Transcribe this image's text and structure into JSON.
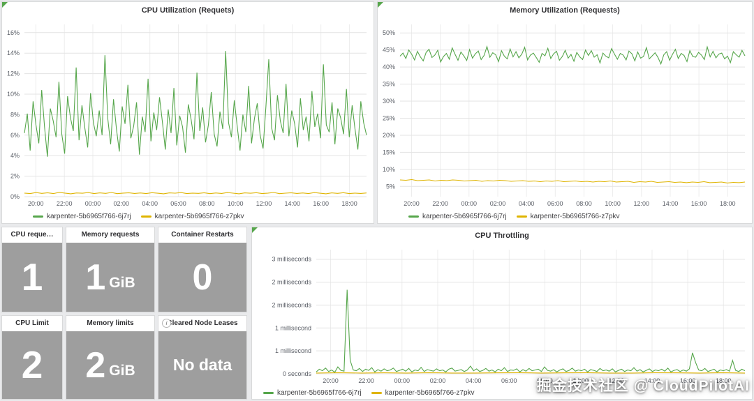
{
  "colors": {
    "green": "#56a64b",
    "yellow": "#dfb400",
    "stat_bg": "#9e9e9e",
    "panel_border": "#d8d9da"
  },
  "icons": {
    "info": "i"
  },
  "watermark": "掘金技术社区 @ CloudPilotAI",
  "panels": {
    "stats": [
      {
        "title": "CPU reque…",
        "value": "1",
        "unit": ""
      },
      {
        "title": "Memory requests",
        "value": "1",
        "unit": "GiB"
      },
      {
        "title": "Container Restarts",
        "value": "0",
        "unit": ""
      },
      {
        "title": "CPU Limit",
        "value": "2",
        "unit": ""
      },
      {
        "title": "Memory limits",
        "value": "2",
        "unit": "GiB"
      },
      {
        "title": "Cleared Node Leases",
        "value": "No data",
        "unit": ""
      }
    ]
  },
  "chart_data": [
    {
      "type": "line",
      "title": "CPU Utilization (Requets)",
      "xlabel": "",
      "ylabel": "",
      "grid": true,
      "legend_position": "bottom",
      "ylim": [
        0,
        16.8
      ],
      "y_ticks": [
        {
          "v": 0,
          "label": "0%"
        },
        {
          "v": 2,
          "label": "2%"
        },
        {
          "v": 4,
          "label": "4%"
        },
        {
          "v": 6,
          "label": "6%"
        },
        {
          "v": 8,
          "label": "8%"
        },
        {
          "v": 10,
          "label": "10%"
        },
        {
          "v": 12,
          "label": "12%"
        },
        {
          "v": 14,
          "label": "14%"
        },
        {
          "v": 16,
          "label": "16%"
        }
      ],
      "x_ticks": [
        "20:00",
        "22:00",
        "00:00",
        "02:00",
        "04:00",
        "06:00",
        "08:00",
        "10:00",
        "12:00",
        "14:00",
        "16:00",
        "18:00"
      ],
      "series": [
        {
          "name": "karpenter-5b6965f766-6j7rj",
          "color": "#56a64b",
          "values": [
            6.2,
            8.1,
            4.5,
            9.3,
            7.0,
            5.2,
            10.4,
            6.8,
            3.9,
            8.6,
            7.4,
            5.8,
            11.2,
            6.1,
            4.2,
            9.8,
            7.7,
            6.4,
            12.6,
            5.5,
            8.9,
            6.7,
            4.8,
            10.1,
            7.2,
            5.9,
            8.4,
            6.0,
            13.8,
            7.6,
            5.1,
            9.5,
            6.6,
            4.4,
            8.8,
            7.1,
            10.9,
            5.7,
            6.9,
            9.2,
            4.1,
            7.8,
            6.3,
            11.5,
            5.4,
            8.2,
            6.5,
            9.7,
            7.3,
            4.6,
            8.5,
            6.2,
            10.6,
            5.0,
            7.9,
            6.8,
            4.3,
            9.0,
            7.5,
            5.6,
            12.1,
            6.4,
            8.7,
            5.3,
            7.0,
            10.2,
            6.1,
            4.9,
            8.3,
            6.6,
            14.2,
            7.2,
            5.8,
            9.4,
            6.9,
            4.5,
            8.0,
            6.3,
            10.8,
            5.2,
            7.6,
            9.1,
            6.0,
            4.7,
            8.8,
            13.4,
            6.7,
            5.5,
            9.9,
            7.4,
            6.2,
            11.0,
            5.9,
            8.4,
            7.1,
            4.8,
            9.6,
            6.5,
            7.8,
            5.4,
            10.3,
            6.8,
            8.1,
            5.7,
            12.9,
            7.0,
            6.3,
            9.2,
            5.1,
            8.6,
            7.7,
            6.1,
            10.5,
            5.8,
            8.9,
            6.6,
            4.6,
            9.3,
            7.2,
            6.0
          ]
        },
        {
          "name": "karpenter-5b6965f766-z7pkv",
          "color": "#dfb400",
          "values": [
            0.35,
            0.3,
            0.4,
            0.32,
            0.38,
            0.3,
            0.42,
            0.35,
            0.28,
            0.36,
            0.33,
            0.4,
            0.3,
            0.37,
            0.32,
            0.41,
            0.29,
            0.35,
            0.38,
            0.31,
            0.36,
            0.3,
            0.39,
            0.33,
            0.28,
            0.37,
            0.34,
            0.4,
            0.3,
            0.35,
            0.32,
            0.38,
            0.29,
            0.36,
            0.31,
            0.4,
            0.34,
            0.28,
            0.37,
            0.33,
            0.39,
            0.3,
            0.35,
            0.41,
            0.29,
            0.34,
            0.38,
            0.31,
            0.36,
            0.3,
            0.4,
            0.33,
            0.28,
            0.37,
            0.32,
            0.39,
            0.3,
            0.35,
            0.31,
            0.36
          ]
        }
      ]
    },
    {
      "type": "line",
      "title": "Memory Utilization (Requests)",
      "xlabel": "",
      "ylabel": "",
      "grid": true,
      "legend_position": "bottom",
      "ylim": [
        2,
        52.5
      ],
      "y_ticks": [
        {
          "v": 5,
          "label": "5%"
        },
        {
          "v": 10,
          "label": "10%"
        },
        {
          "v": 15,
          "label": "15%"
        },
        {
          "v": 20,
          "label": "20%"
        },
        {
          "v": 25,
          "label": "25%"
        },
        {
          "v": 30,
          "label": "30%"
        },
        {
          "v": 35,
          "label": "35%"
        },
        {
          "v": 40,
          "label": "40%"
        },
        {
          "v": 45,
          "label": "45%"
        },
        {
          "v": 50,
          "label": "50%"
        }
      ],
      "x_ticks": [
        "20:00",
        "22:00",
        "00:00",
        "02:00",
        "04:00",
        "06:00",
        "08:00",
        "10:00",
        "12:00",
        "14:00",
        "16:00",
        "18:00"
      ],
      "series": [
        {
          "name": "karpenter-5b6965f766-6j7rj",
          "color": "#56a64b",
          "values": [
            43.2,
            44.1,
            42.5,
            45.0,
            43.8,
            42.1,
            44.6,
            43.0,
            41.8,
            44.3,
            45.2,
            42.8,
            43.5,
            44.9,
            41.5,
            43.1,
            44.0,
            42.3,
            45.6,
            43.7,
            42.0,
            44.4,
            43.3,
            41.9,
            45.1,
            42.6,
            43.9,
            44.7,
            42.2,
            43.4,
            46.0,
            42.9,
            44.2,
            43.6,
            41.6,
            44.8,
            43.2,
            42.4,
            45.3,
            43.0,
            44.5,
            42.7,
            43.8,
            45.8,
            42.1,
            43.5,
            44.1,
            42.8,
            41.4,
            44.0,
            43.3,
            45.5,
            42.5,
            43.9,
            44.6,
            42.0,
            43.1,
            44.9,
            42.6,
            43.7,
            41.7,
            44.3,
            43.0,
            42.2,
            45.0,
            43.4,
            44.8,
            42.9,
            43.6,
            41.2,
            44.1,
            43.2,
            42.7,
            45.4,
            43.8,
            42.3,
            44.0,
            43.5,
            42.1,
            44.7,
            43.9,
            41.8,
            44.4,
            42.6,
            43.1,
            45.7,
            42.4,
            43.3,
            44.2,
            42.8,
            40.9,
            43.6,
            44.5,
            42.0,
            43.7,
            45.2,
            42.5,
            44.0,
            43.4,
            41.6,
            44.8,
            43.1,
            42.9,
            44.3,
            43.5,
            42.2,
            45.9,
            43.0,
            44.6,
            42.7,
            43.8,
            44.1,
            42.4,
            43.2,
            41.3,
            44.5,
            43.6,
            42.9,
            44.9,
            43.3
          ]
        },
        {
          "name": "karpenter-5b6965f766-z7pkv",
          "color": "#dfb400",
          "values": [
            6.9,
            6.8,
            7.0,
            6.7,
            6.8,
            6.9,
            6.6,
            6.8,
            6.7,
            6.9,
            6.8,
            6.6,
            6.7,
            6.8,
            6.5,
            6.7,
            6.6,
            6.8,
            6.7,
            6.5,
            6.6,
            6.7,
            6.5,
            6.6,
            6.4,
            6.6,
            6.5,
            6.7,
            6.4,
            6.5,
            6.6,
            6.4,
            6.5,
            6.3,
            6.5,
            6.4,
            6.6,
            6.3,
            6.4,
            6.5,
            6.2,
            6.4,
            6.3,
            6.5,
            6.2,
            6.3,
            6.4,
            6.2,
            6.3,
            6.1,
            6.3,
            6.2,
            6.4,
            6.1,
            6.2,
            6.3,
            6.0,
            6.2,
            6.1,
            6.3
          ]
        }
      ]
    },
    {
      "type": "line",
      "title": "CPU Throttling",
      "xlabel": "",
      "ylabel": "",
      "grid": true,
      "legend_position": "bottom",
      "ylim": [
        0,
        3.25
      ],
      "y_ticks": [
        {
          "v": 0,
          "label": "0 seconds"
        },
        {
          "v": 0.6,
          "label": "1 millisecond"
        },
        {
          "v": 1.2,
          "label": "1 millisecond"
        },
        {
          "v": 1.8,
          "label": "2 milliseconds"
        },
        {
          "v": 2.4,
          "label": "2 milliseconds"
        },
        {
          "v": 3.0,
          "label": "3 milliseconds"
        }
      ],
      "x_ticks": [
        "20:00",
        "22:00",
        "00:00",
        "02:00",
        "04:00",
        "06:00",
        "08:00",
        "10:00",
        "12:00",
        "14:00",
        "16:00",
        "18:00"
      ],
      "series": [
        {
          "name": "karpenter-5b6965f766-6j7rj",
          "color": "#56a64b",
          "values": [
            0.05,
            0.12,
            0.08,
            0.15,
            0.06,
            0.1,
            0.04,
            0.18,
            0.09,
            0.07,
            2.2,
            0.35,
            0.1,
            0.08,
            0.14,
            0.06,
            0.12,
            0.09,
            0.16,
            0.05,
            0.11,
            0.07,
            0.13,
            0.08,
            0.1,
            0.15,
            0.06,
            0.09,
            0.12,
            0.07,
            0.14,
            0.05,
            0.1,
            0.08,
            0.17,
            0.06,
            0.11,
            0.09,
            0.07,
            0.13,
            0.08,
            0.1,
            0.05,
            0.12,
            0.15,
            0.07,
            0.09,
            0.11,
            0.06,
            0.1,
            0.2,
            0.08,
            0.13,
            0.06,
            0.09,
            0.14,
            0.07,
            0.1,
            0.05,
            0.12,
            0.08,
            0.16,
            0.06,
            0.1,
            0.09,
            0.13,
            0.05,
            0.11,
            0.07,
            0.14,
            0.08,
            0.1,
            0.12,
            0.06,
            0.18,
            0.09,
            0.07,
            0.11,
            0.05,
            0.1,
            0.13,
            0.06,
            0.09,
            0.15,
            0.07,
            0.1,
            0.08,
            0.12,
            0.05,
            0.11,
            0.09,
            0.06,
            0.14,
            0.08,
            0.1,
            0.07,
            0.13,
            0.05,
            0.09,
            0.12,
            0.06,
            0.1,
            0.08,
            0.16,
            0.07,
            0.11,
            0.05,
            0.09,
            0.13,
            0.06,
            0.1,
            0.08,
            0.12,
            0.07,
            0.15,
            0.05,
            0.09,
            0.11,
            0.06,
            0.1,
            0.07,
            0.13,
            0.55,
            0.3,
            0.1,
            0.08,
            0.14,
            0.06,
            0.09,
            0.12,
            0.05,
            0.1,
            0.08,
            0.11,
            0.07,
            0.35,
            0.09,
            0.06,
            0.12,
            0.08
          ]
        },
        {
          "name": "karpenter-5b6965f766-z7pkv",
          "color": "#dfb400",
          "values": [
            0.02,
            0.03,
            0.02,
            0.025,
            0.02,
            0.03,
            0.02,
            0.02,
            0.025,
            0.03,
            0.02,
            0.025,
            0.03,
            0.02,
            0.02,
            0.03,
            0.025,
            0.02,
            0.03,
            0.02
          ]
        }
      ]
    }
  ]
}
